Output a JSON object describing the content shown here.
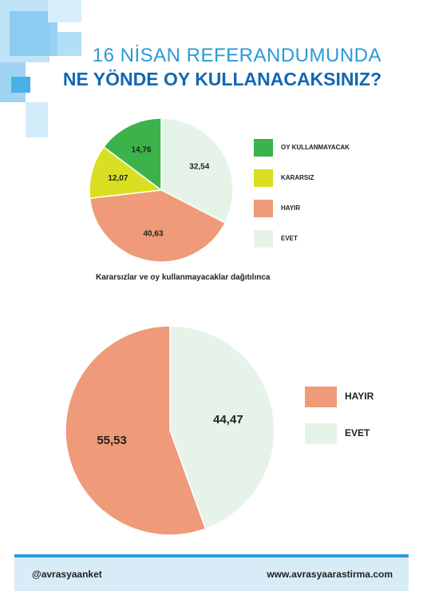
{
  "header": {
    "title_line1": "16 NİSAN REFERANDUMUNDA",
    "title_line2": "NE YÖNDE OY KULLANACAKSINIZ?"
  },
  "note": "Kararsızlar ve oy kullanmayacaklar dağıtılınca",
  "footer": {
    "left": "@avrasyaanket",
    "right": "www.avrasyaarastirma.com"
  },
  "colors": {
    "accent": "#2a9ad8",
    "title_dark": "#1467b3",
    "oy_kullanmayacak": "#3bb34a",
    "kararsiz": "#d9e021",
    "hayir": "#ef9a78",
    "evet": "#e6f3e9"
  },
  "chart_data": [
    {
      "type": "pie",
      "categories": [
        "EVET",
        "HAYIR",
        "KARARSIZ",
        "OY KULLANMAYACAK"
      ],
      "values": [
        32.54,
        40.63,
        12.07,
        14.76
      ],
      "value_labels": [
        "32,54",
        "40,63",
        "12,07",
        "14,76"
      ],
      "legend": [
        "OY KULLANMAYACAK",
        "KARARSIZ",
        "HAYIR",
        "EVET"
      ],
      "legend_placement": "right"
    },
    {
      "type": "pie",
      "categories": [
        "EVET",
        "HAYIR"
      ],
      "values": [
        44.47,
        55.53
      ],
      "value_labels": [
        "44,47",
        "55,53"
      ],
      "legend": [
        "HAYIR",
        "EVET"
      ],
      "legend_placement": "right"
    }
  ]
}
